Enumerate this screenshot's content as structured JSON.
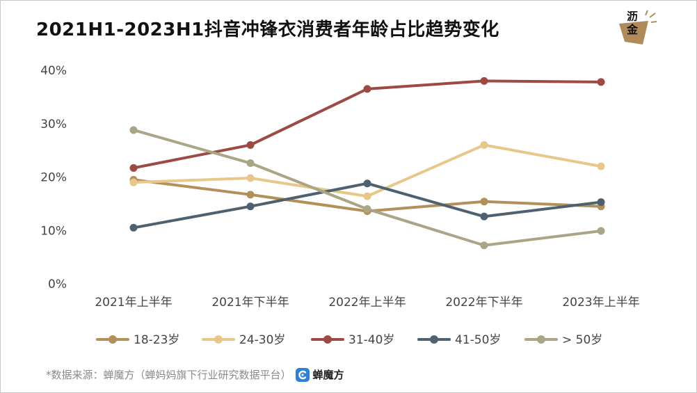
{
  "title": "2021H1-2023H1抖音冲锋衣消费者年龄占比趋势变化",
  "logo": {
    "char1": "沥",
    "char2": "金"
  },
  "footer": {
    "source": "*数据来源：蝉魔方（蝉妈妈旗下行业研究数据平台）",
    "brand_name": "蝉魔方",
    "brand_icon": "chanmofang-logo-icon"
  },
  "colors": {
    "18-23岁": "#b38f5a",
    "24-30岁": "#e8c88a",
    "31-40岁": "#9c4a42",
    "41-50岁": "#4e6170",
    "> 50岁": "#aaa584"
  },
  "chart_data": {
    "type": "line",
    "title": "2021H1-2023H1抖音冲锋衣消费者年龄占比趋势变化",
    "xlabel": "",
    "ylabel": "",
    "categories": [
      "2021年上半年",
      "2021年下半年",
      "2022年上半年",
      "2022年下半年",
      "2023年上半年"
    ],
    "ylim": [
      0,
      40
    ],
    "yticks": [
      "0%",
      "10%",
      "20%",
      "30%",
      "40%"
    ],
    "grid": false,
    "legend_position": "bottom",
    "series": [
      {
        "name": "18-23岁",
        "values": [
          19.5,
          16.7,
          13.6,
          15.4,
          14.5
        ]
      },
      {
        "name": "24-30岁",
        "values": [
          19.0,
          19.8,
          16.4,
          26.0,
          22.0
        ]
      },
      {
        "name": "31-40岁",
        "values": [
          21.7,
          26.0,
          36.5,
          38.0,
          37.8
        ]
      },
      {
        "name": "41-50岁",
        "values": [
          10.5,
          14.5,
          18.8,
          12.6,
          15.3
        ]
      },
      {
        "name": "> 50岁",
        "values": [
          28.8,
          22.6,
          14.0,
          7.2,
          9.9
        ]
      }
    ]
  }
}
